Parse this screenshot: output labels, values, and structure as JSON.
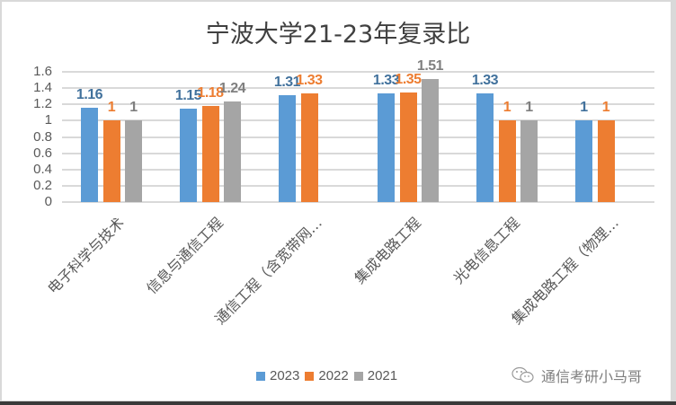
{
  "chart_data": {
    "type": "bar",
    "title": "宁波大学21-23年复录比",
    "xlabel": "",
    "ylabel": "",
    "ylim": [
      0,
      1.6
    ],
    "yticks": [
      "1.6",
      "1.4",
      "1.2",
      "1",
      "0.8",
      "0.6",
      "0.4",
      "0.2",
      "0"
    ],
    "grid": true,
    "legend_position": "bottom",
    "categories": [
      "电子科学与技术",
      "信息与通信工程",
      "通信工程（含宽带网…",
      "集成电路工程",
      "光电信息工程",
      "集成电路工程（物理…"
    ],
    "series": [
      {
        "name": "2023",
        "color": "#5b9bd5",
        "label_color": "#41719c",
        "values": [
          1.16,
          1.15,
          1.31,
          1.33,
          1.33,
          1
        ]
      },
      {
        "name": "2022",
        "color": "#ed7d31",
        "label_color": "#ed7d31",
        "values": [
          1,
          1.18,
          1.33,
          1.35,
          1,
          1
        ]
      },
      {
        "name": "2021",
        "color": "#a5a5a5",
        "label_color": "#7f7f7f",
        "values": [
          1,
          1.24,
          null,
          1.51,
          1,
          null
        ]
      }
    ]
  },
  "legend": [
    {
      "label": "2023",
      "color": "#5b9bd5"
    },
    {
      "label": "2022",
      "color": "#ed7d31"
    },
    {
      "label": "2021",
      "color": "#a5a5a5"
    }
  ],
  "watermark": {
    "text": "通信考研小马哥",
    "icon": "wechat-icon"
  }
}
